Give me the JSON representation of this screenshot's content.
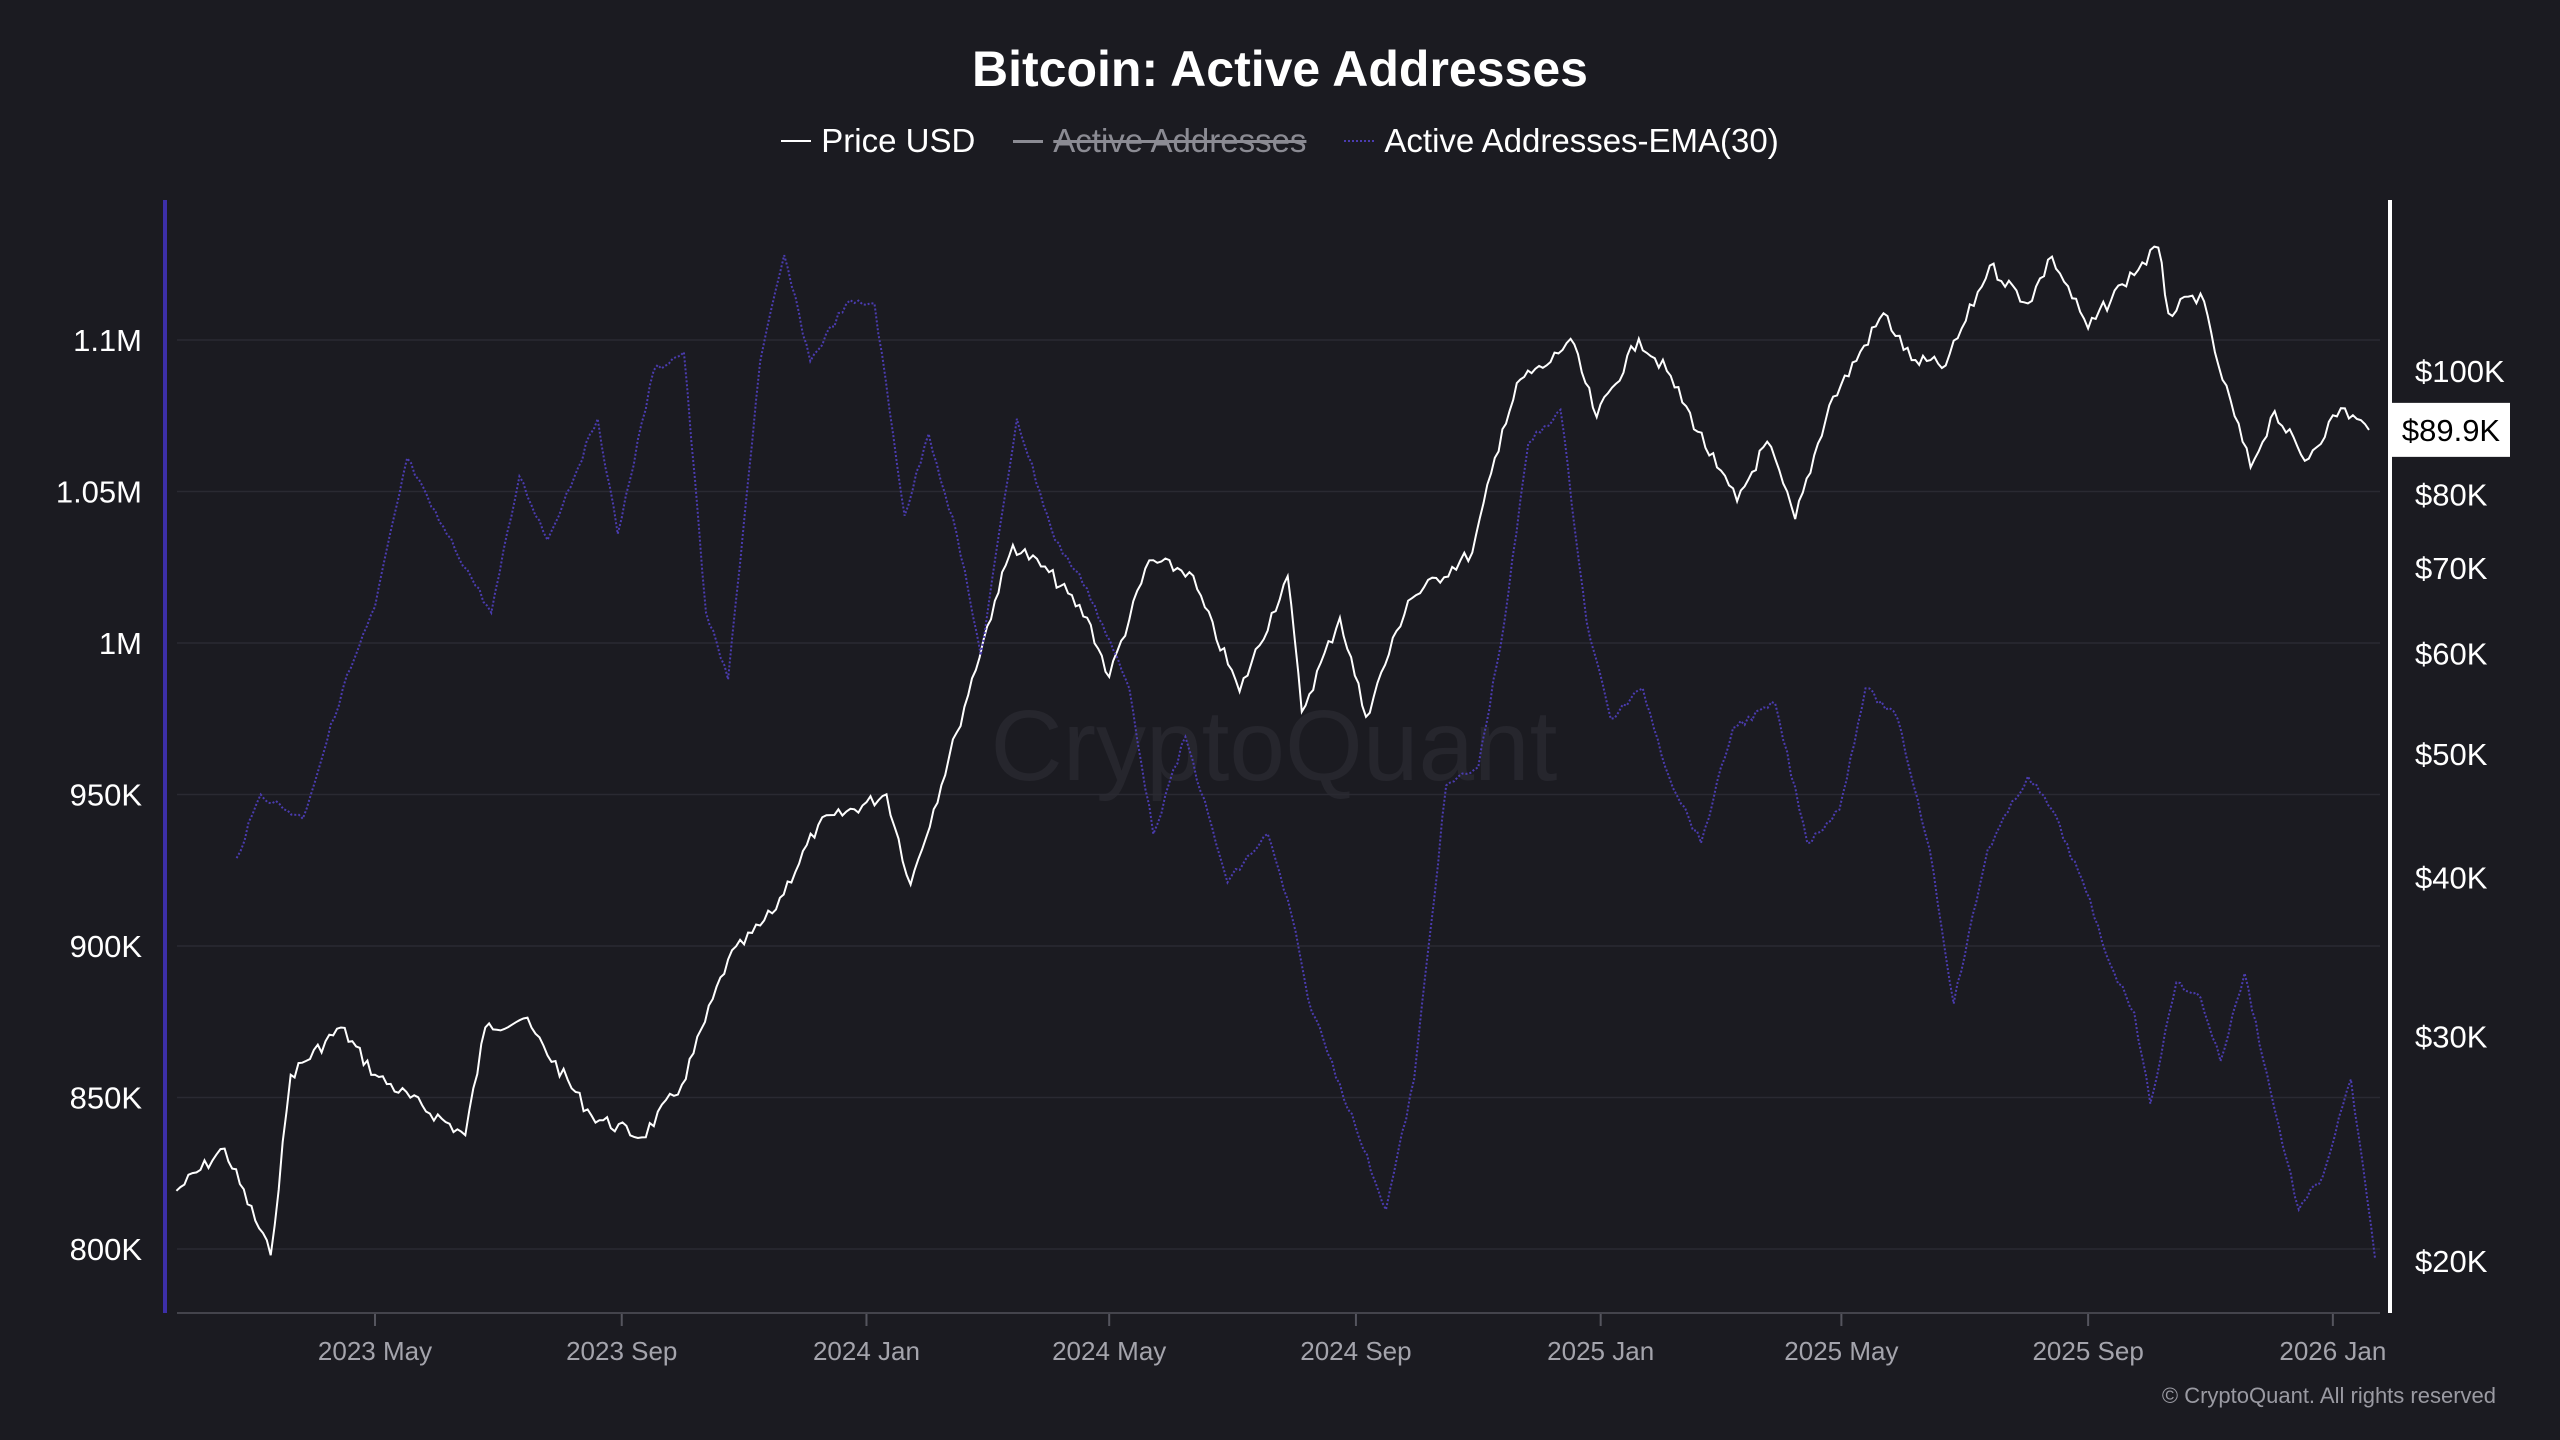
{
  "title": "Bitcoin: Active Addresses",
  "legend": [
    {
      "label": "Price USD",
      "state": "visible"
    },
    {
      "label": "Active Addresses",
      "state": "hidden"
    },
    {
      "label": "Active Addresses-EMA(30)",
      "state": "visible"
    }
  ],
  "watermark": "CryptoQuant",
  "copyright": "© CryptoQuant. All rights reserved",
  "colors": {
    "background": "#1b1b21",
    "price": "#ffffff",
    "ema": "#4b3cb0",
    "left_axis": "#3d2fa8",
    "grid": "#2a2a32"
  },
  "chart_data": {
    "type": "line",
    "title": "Bitcoin: Active Addresses",
    "xlabel": "",
    "ylabel_left": "Active Addresses",
    "ylabel_right": "Price USD",
    "x_ticks": [
      {
        "date": "2023-05-01",
        "label": "2023 May"
      },
      {
        "date": "2023-09-01",
        "label": "2023 Sep"
      },
      {
        "date": "2024-01-01",
        "label": "2024 Jan"
      },
      {
        "date": "2024-05-01",
        "label": "2024 May"
      },
      {
        "date": "2024-09-01",
        "label": "2024 Sep"
      },
      {
        "date": "2025-01-01",
        "label": "2025 Jan"
      },
      {
        "date": "2025-05-01",
        "label": "2025 May"
      },
      {
        "date": "2025-09-01",
        "label": "2025 Sep"
      },
      {
        "date": "2026-01-01",
        "label": "2026 Jan"
      }
    ],
    "xlim": [
      "2023-01-20",
      "2026-01-24"
    ],
    "left_axis": {
      "scale": "linear",
      "ylim": [
        780000,
        1145000
      ],
      "ticks": [
        {
          "value": 800000,
          "label": "800K"
        },
        {
          "value": 850000,
          "label": "850K"
        },
        {
          "value": 900000,
          "label": "900K"
        },
        {
          "value": 950000,
          "label": "950K"
        },
        {
          "value": 1000000,
          "label": "1M"
        },
        {
          "value": 1050000,
          "label": "1.05M"
        },
        {
          "value": 1100000,
          "label": "1.1M"
        }
      ]
    },
    "right_axis": {
      "scale": "log",
      "ticks": [
        {
          "value": 20000,
          "label": "$20K"
        },
        {
          "value": 30000,
          "label": "$30K"
        },
        {
          "value": 40000,
          "label": "$40K"
        },
        {
          "value": 50000,
          "label": "$50K"
        },
        {
          "value": 60000,
          "label": "$60K"
        },
        {
          "value": 70000,
          "label": "$70K"
        },
        {
          "value": 80000,
          "label": "$80K"
        },
        {
          "value": 100000,
          "label": "$100K"
        }
      ],
      "current": {
        "value": 89900,
        "label": "$89.9K"
      }
    },
    "grid": "horizontal",
    "legend_position": "top-center",
    "series": [
      {
        "name": "Price USD",
        "axis": "right",
        "points": [
          [
            "2023-01-22",
            22700
          ],
          [
            "2023-02-15",
            24500
          ],
          [
            "2023-03-10",
            20200
          ],
          [
            "2023-03-20",
            28000
          ],
          [
            "2023-04-14",
            30500
          ],
          [
            "2023-05-01",
            28000
          ],
          [
            "2023-06-15",
            25100
          ],
          [
            "2023-06-25",
            30500
          ],
          [
            "2023-07-14",
            31000
          ],
          [
            "2023-08-17",
            26000
          ],
          [
            "2023-09-11",
            25000
          ],
          [
            "2023-10-01",
            27500
          ],
          [
            "2023-10-24",
            34500
          ],
          [
            "2023-11-15",
            37500
          ],
          [
            "2023-12-08",
            44000
          ],
          [
            "2024-01-11",
            46500
          ],
          [
            "2024-01-23",
            39500
          ],
          [
            "2024-02-15",
            52000
          ],
          [
            "2024-03-05",
            66000
          ],
          [
            "2024-03-14",
            73000
          ],
          [
            "2024-04-01",
            69500
          ],
          [
            "2024-04-20",
            64000
          ],
          [
            "2024-05-01",
            57500
          ],
          [
            "2024-05-21",
            71000
          ],
          [
            "2024-06-10",
            69500
          ],
          [
            "2024-07-05",
            56000
          ],
          [
            "2024-07-29",
            69000
          ],
          [
            "2024-08-05",
            54000
          ],
          [
            "2024-08-24",
            64000
          ],
          [
            "2024-09-06",
            53500
          ],
          [
            "2024-09-27",
            66000
          ],
          [
            "2024-10-29",
            72000
          ],
          [
            "2024-11-13",
            90000
          ],
          [
            "2024-11-22",
            98500
          ],
          [
            "2024-12-05",
            101000
          ],
          [
            "2024-12-17",
            106000
          ],
          [
            "2024-12-30",
            92000
          ],
          [
            "2025-01-20",
            106000
          ],
          [
            "2025-02-03",
            100000
          ],
          [
            "2025-02-28",
            84000
          ],
          [
            "2025-03-10",
            79000
          ],
          [
            "2025-03-25",
            88000
          ],
          [
            "2025-04-08",
            76500
          ],
          [
            "2025-04-25",
            94000
          ],
          [
            "2025-05-22",
            111000
          ],
          [
            "2025-06-05",
            102000
          ],
          [
            "2025-06-22",
            101000
          ],
          [
            "2025-07-14",
            121000
          ],
          [
            "2025-08-02",
            113000
          ],
          [
            "2025-08-14",
            123000
          ],
          [
            "2025-09-01",
            108000
          ],
          [
            "2025-09-18",
            117000
          ],
          [
            "2025-10-06",
            125000
          ],
          [
            "2025-10-11",
            111000
          ],
          [
            "2025-10-27",
            115000
          ],
          [
            "2025-11-05",
            101000
          ],
          [
            "2025-11-21",
            84000
          ],
          [
            "2025-12-03",
            93000
          ],
          [
            "2025-12-18",
            85000
          ],
          [
            "2026-01-05",
            93500
          ],
          [
            "2026-01-19",
            89900
          ]
        ]
      },
      {
        "name": "Active Addresses-EMA(30)",
        "axis": "left",
        "points": [
          [
            "2023-02-21",
            929000
          ],
          [
            "2023-03-05",
            950000
          ],
          [
            "2023-03-26",
            942000
          ],
          [
            "2023-04-15",
            985000
          ],
          [
            "2023-05-01",
            1012000
          ],
          [
            "2023-05-17",
            1061000
          ],
          [
            "2023-05-29",
            1045000
          ],
          [
            "2023-06-28",
            1010000
          ],
          [
            "2023-07-12",
            1055000
          ],
          [
            "2023-07-26",
            1034000
          ],
          [
            "2023-08-20",
            1074000
          ],
          [
            "2023-08-30",
            1036000
          ],
          [
            "2023-09-17",
            1090000
          ],
          [
            "2023-10-02",
            1096000
          ],
          [
            "2023-10-13",
            1010000
          ],
          [
            "2023-10-24",
            988000
          ],
          [
            "2023-11-09",
            1093000
          ],
          [
            "2023-11-21",
            1128000
          ],
          [
            "2023-12-04",
            1093000
          ],
          [
            "2023-12-22",
            1112000
          ],
          [
            "2024-01-05",
            1112000
          ],
          [
            "2024-01-20",
            1042000
          ],
          [
            "2024-02-01",
            1069000
          ],
          [
            "2024-02-15",
            1036000
          ],
          [
            "2024-02-27",
            996000
          ],
          [
            "2024-03-16",
            1074000
          ],
          [
            "2024-04-04",
            1034000
          ],
          [
            "2024-04-20",
            1018000
          ],
          [
            "2024-05-11",
            985000
          ],
          [
            "2024-05-23",
            937000
          ],
          [
            "2024-06-08",
            969000
          ],
          [
            "2024-06-29",
            921000
          ],
          [
            "2024-07-19",
            937000
          ],
          [
            "2024-07-31",
            910000
          ],
          [
            "2024-08-08",
            883000
          ],
          [
            "2024-09-01",
            840000
          ],
          [
            "2024-09-16",
            813000
          ],
          [
            "2024-09-30",
            856000
          ],
          [
            "2024-10-16",
            953000
          ],
          [
            "2024-11-01",
            959000
          ],
          [
            "2024-11-14",
            1007000
          ],
          [
            "2024-11-26",
            1066000
          ],
          [
            "2024-12-12",
            1077000
          ],
          [
            "2024-12-25",
            1007000
          ],
          [
            "2025-01-06",
            975000
          ],
          [
            "2025-01-22",
            985000
          ],
          [
            "2025-02-04",
            956000
          ],
          [
            "2025-02-20",
            934000
          ],
          [
            "2025-03-08",
            972000
          ],
          [
            "2025-03-29",
            980000
          ],
          [
            "2025-04-14",
            934000
          ],
          [
            "2025-04-30",
            945000
          ],
          [
            "2025-05-13",
            985000
          ],
          [
            "2025-05-29",
            975000
          ],
          [
            "2025-06-14",
            932000
          ],
          [
            "2025-06-26",
            881000
          ],
          [
            "2025-07-13",
            932000
          ],
          [
            "2025-08-02",
            956000
          ],
          [
            "2025-08-14",
            945000
          ],
          [
            "2025-08-31",
            918000
          ],
          [
            "2025-09-12",
            894000
          ],
          [
            "2025-09-24",
            878000
          ],
          [
            "2025-10-02",
            848000
          ],
          [
            "2025-10-15",
            888000
          ],
          [
            "2025-10-27",
            883000
          ],
          [
            "2025-11-06",
            862000
          ],
          [
            "2025-11-18",
            891000
          ],
          [
            "2025-12-03",
            846000
          ],
          [
            "2025-12-15",
            813000
          ],
          [
            "2025-12-27",
            824000
          ],
          [
            "2026-01-10",
            856000
          ],
          [
            "2026-01-22",
            797000
          ]
        ]
      }
    ]
  }
}
